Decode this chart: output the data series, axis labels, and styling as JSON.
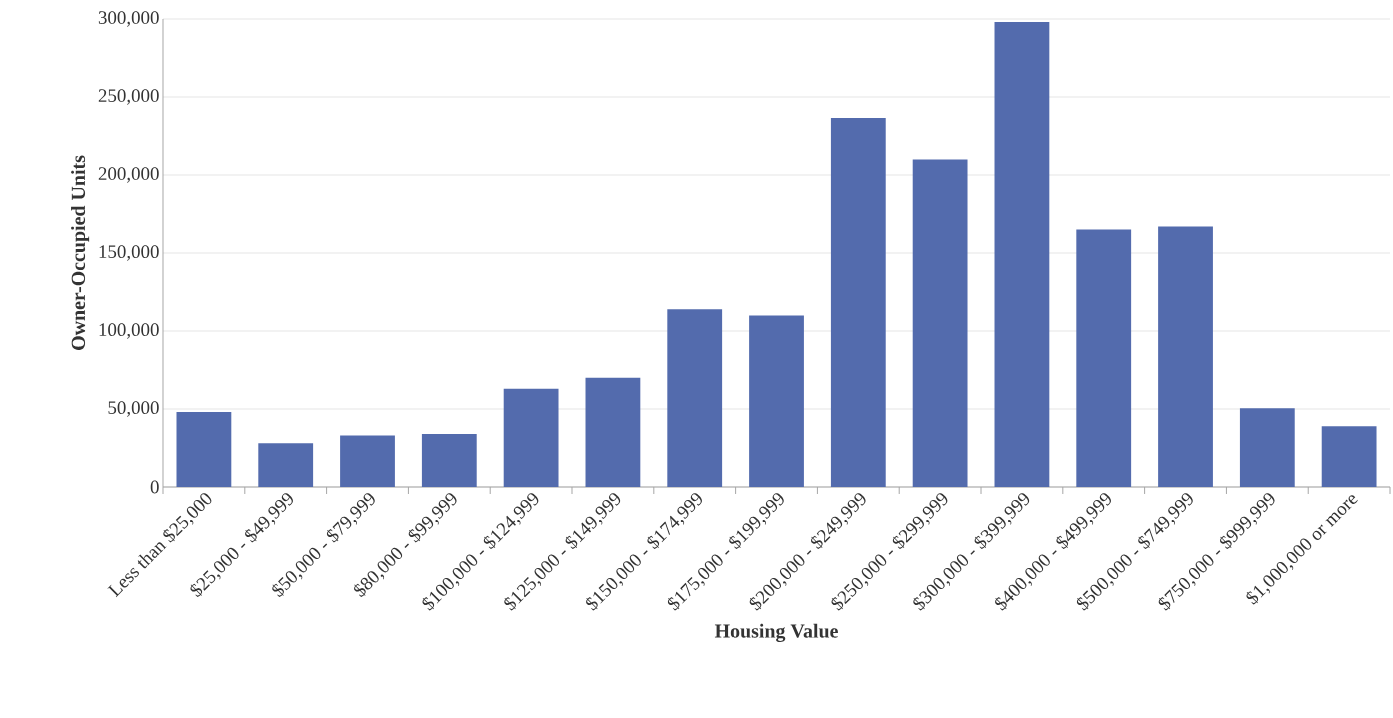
{
  "chart_data": {
    "type": "bar",
    "xlabel": "Housing Value",
    "ylabel": "Owner-Occupied Units",
    "categories": [
      "Less than $25,000",
      "$25,000 - $49,999",
      "$50,000 - $79,999",
      "$80,000 - $99,999",
      "$100,000 - $124,999",
      "$125,000 - $149,999",
      "$150,000 - $174,999",
      "$175,000 - $199,999",
      "$200,000 - $249,999",
      "$250,000 - $299,999",
      "$300,000 - $399,999",
      "$400,000 - $499,999",
      "$500,000 - $749,999",
      "$750,000 - $999,999",
      "$1,000,000 or more"
    ],
    "values": [
      48000,
      28000,
      33000,
      34000,
      63000,
      70000,
      114000,
      110000,
      236500,
      210000,
      298000,
      165000,
      167000,
      50500,
      39000
    ],
    "color": "#536bad",
    "ylim": [
      0,
      300000
    ],
    "yticks": [
      0,
      {
        "value": 50000,
        "label": "50,000"
      },
      {
        "value": 100000,
        "label": "100,000"
      },
      {
        "value": 150000,
        "label": "150,000"
      },
      {
        "value": 200000,
        "label": "200,000"
      },
      {
        "value": 250000,
        "label": "250,000"
      },
      {
        "value": 300000,
        "label": "300,000"
      }
    ],
    "grid": "y"
  }
}
